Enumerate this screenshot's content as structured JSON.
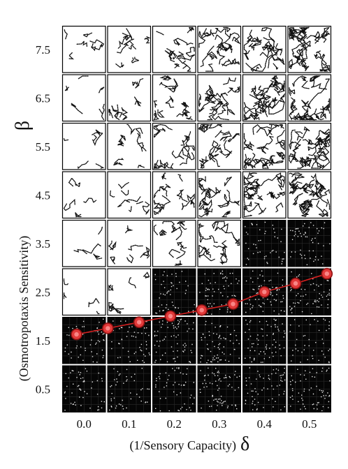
{
  "chart_data": {
    "type": "phase-diagram-grid",
    "x_ticks": [
      "0.0",
      "0.1",
      "0.2",
      "0.3",
      "0.4",
      "0.5"
    ],
    "y_ticks": [
      "7.5",
      "6.5",
      "5.5",
      "4.5",
      "3.5",
      "2.5",
      "1.5",
      "0.5"
    ],
    "xlabel": "(1/Sensory Capacity)",
    "xlabel_symbol": "δ",
    "ylabel": "(Osmotropotaxis Sensitivity)",
    "ylabel_symbol": "β",
    "xlim": [
      -0.03,
      0.51
    ],
    "ylim": [
      0,
      8
    ],
    "grid": {
      "rows_top_to_bottom": [
        "7.5",
        "6.5",
        "5.5",
        "4.5",
        "3.5",
        "2.5",
        "1.5",
        "0.5"
      ],
      "cols_left_to_right": [
        "0.0",
        "0.1",
        "0.2",
        "0.3",
        "0.4",
        "0.5"
      ],
      "cell_states": [
        [
          "trails",
          "trails",
          "trails",
          "trails",
          "trails",
          "trails"
        ],
        [
          "trails",
          "trails",
          "trails",
          "trails",
          "trails",
          "trails"
        ],
        [
          "trails",
          "trails",
          "trails",
          "trails",
          "trails",
          "trails"
        ],
        [
          "trails",
          "trails",
          "trails",
          "trails",
          "trails",
          "trails"
        ],
        [
          "trails",
          "trails",
          "trails",
          "trails",
          "disordered",
          "disordered"
        ],
        [
          "trails",
          "trails",
          "disordered",
          "disordered",
          "disordered",
          "disordered"
        ],
        [
          "disordered",
          "disordered",
          "disordered",
          "disordered",
          "disordered",
          "disordered"
        ],
        [
          "disordered",
          "disordered",
          "disordered",
          "disordered",
          "disordered",
          "disordered"
        ]
      ]
    },
    "series": [
      {
        "marker_color": "#e23a3a",
        "line_color": "#d42020",
        "x": [
          0.0,
          0.0625,
          0.125,
          0.1875,
          0.25,
          0.3125,
          0.375,
          0.4375,
          0.5
        ],
        "y": [
          1.625,
          1.75,
          1.875,
          2.0,
          2.125,
          2.25,
          2.5,
          2.675,
          2.875
        ]
      }
    ]
  }
}
